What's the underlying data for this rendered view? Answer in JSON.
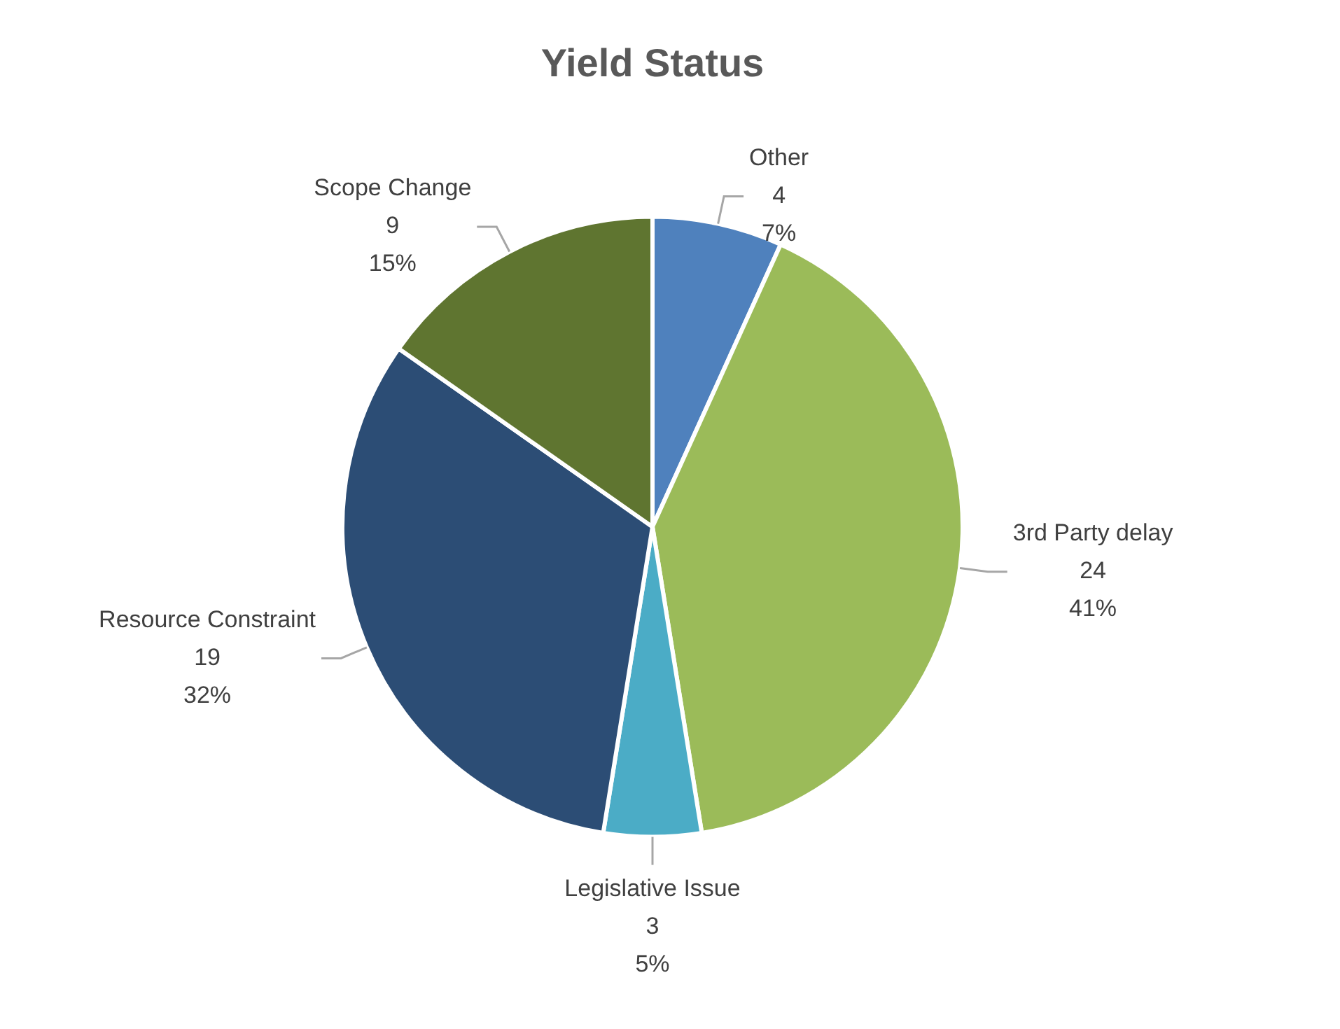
{
  "chart_data": {
    "type": "pie",
    "title": "Yield Status",
    "categories": [
      "Other",
      "3rd Party delay",
      "Legislative Issue",
      "Resource Constraint",
      "Scope Change"
    ],
    "values": [
      4,
      24,
      3,
      19,
      9
    ],
    "colors": [
      "#4f81bd",
      "#9bbb59",
      "#4bacc6",
      "#2c4d75",
      "#5f7530"
    ],
    "annotations": [
      {
        "text": "7%",
        "x": "Other"
      },
      {
        "text": "41%",
        "x": "3rd Party delay"
      },
      {
        "text": "5%",
        "x": "Legislative Issue"
      },
      {
        "text": "32%",
        "x": "Resource Constraint"
      },
      {
        "text": "15%",
        "x": "Scope Change"
      }
    ],
    "data_labels": true,
    "legend": false
  }
}
